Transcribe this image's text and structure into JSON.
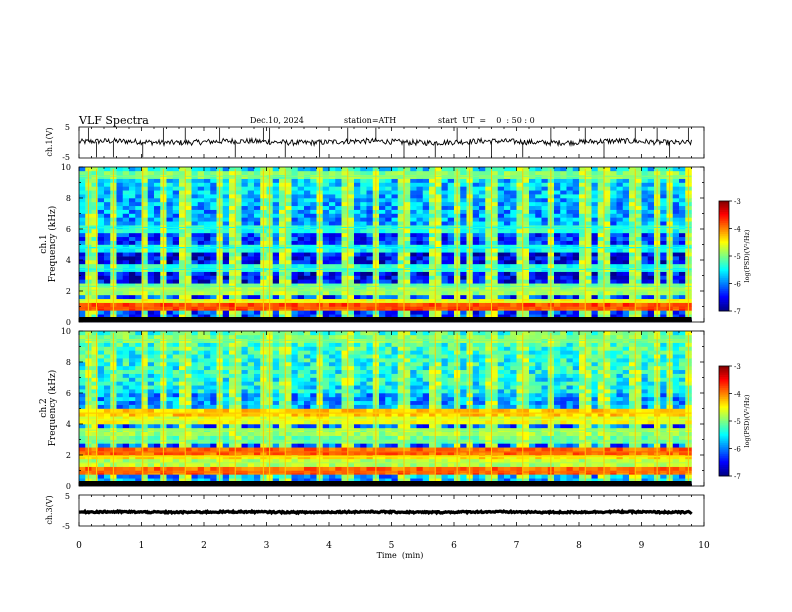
{
  "header": {
    "title": "VLF  Spectra",
    "date": "Dec.10, 2024",
    "station": "station=ATH",
    "start_ut": "start  UT  =    0  : 50 : 0"
  },
  "chart_data": [
    {
      "type": "line",
      "name": "ch1-waveform",
      "ylabel": "ch.1(V)",
      "xlim": [
        0,
        10
      ],
      "ylim": [
        -5,
        5
      ],
      "yticks": [
        "5",
        "-5"
      ],
      "data_extent_min": [
        0,
        9.8
      ],
      "baseline_v": 0.2,
      "noise_amplitude_v": 0.9,
      "spike_times_min": [
        0.15,
        0.28,
        0.55,
        1.02,
        1.35,
        1.7,
        2.25,
        2.5,
        2.95,
        3.05,
        3.3,
        3.85,
        4.3,
        4.75,
        5.2,
        5.7,
        6.05,
        6.25,
        6.6,
        7.1,
        7.55,
        8.1,
        8.4,
        8.9,
        9.25,
        9.45,
        9.75
      ]
    },
    {
      "type": "heatmap",
      "name": "ch1-spectrogram",
      "ylabel_top": "ch.1",
      "ylabel": "Frequency (kHz)",
      "xlim": [
        0,
        10
      ],
      "ylim": [
        0,
        10
      ],
      "yticks": [
        "0",
        "2",
        "4",
        "6",
        "8",
        "10"
      ],
      "data_extent_min": [
        0,
        9.8
      ],
      "colorbar": {
        "label": "log(PSD)(V²/Hz)",
        "range": [
          -7,
          -3
        ],
        "ticks": [
          "-3",
          "-4",
          "-5",
          "-6",
          "-7"
        ]
      },
      "bands_khz": [
        {
          "freq": 0.9,
          "level": -3.8
        },
        {
          "freq": 1.3,
          "level": -4.6
        },
        {
          "freq": 2.05,
          "level": -4.9
        },
        {
          "freq": 2.3,
          "level": -5.1
        },
        {
          "freq": 3.4,
          "level": -5.4
        },
        {
          "freq": 4.8,
          "level": -5.5
        },
        {
          "freq": 6.1,
          "level": -5.4
        },
        {
          "freq": 9.4,
          "level": -5.0
        }
      ],
      "background_level": -6.3,
      "spike_times_min": [
        0.15,
        0.28,
        0.55,
        1.02,
        1.35,
        1.7,
        2.25,
        2.5,
        2.95,
        3.05,
        3.3,
        3.85,
        4.3,
        4.75,
        5.2,
        5.7,
        6.05,
        6.25,
        6.6,
        7.1,
        7.55,
        8.1,
        8.4,
        8.9,
        9.25,
        9.45,
        9.75
      ]
    },
    {
      "type": "heatmap",
      "name": "ch2-spectrogram",
      "ylabel_top": "ch.2",
      "ylabel": "Frequency (kHz)",
      "xlim": [
        0,
        10
      ],
      "ylim": [
        0,
        10
      ],
      "yticks": [
        "0",
        "2",
        "4",
        "6",
        "8",
        "10"
      ],
      "data_extent_min": [
        0,
        9.8
      ],
      "colorbar": {
        "label": "log(PSD)(V²/Hz)",
        "range": [
          -7,
          -3
        ],
        "ticks": [
          "-3",
          "-4",
          "-5",
          "-6",
          "-7"
        ]
      },
      "bands_khz": [
        {
          "freq": 0.9,
          "level": -3.9
        },
        {
          "freq": 1.5,
          "level": -4.8
        },
        {
          "freq": 1.9,
          "level": -4.4
        },
        {
          "freq": 2.2,
          "level": -3.9
        },
        {
          "freq": 2.9,
          "level": -5.1
        },
        {
          "freq": 3.6,
          "level": -4.9
        },
        {
          "freq": 4.3,
          "level": -4.6
        },
        {
          "freq": 4.7,
          "level": -4.3
        },
        {
          "freq": 9.4,
          "level": -5.0
        }
      ],
      "background_level": -5.9,
      "spike_times_min": [
        0.15,
        0.28,
        0.55,
        1.02,
        1.35,
        1.7,
        2.25,
        2.5,
        2.95,
        3.05,
        3.3,
        3.85,
        4.3,
        4.75,
        5.2,
        5.7,
        6.05,
        6.25,
        6.6,
        7.1,
        7.55,
        8.1,
        8.4,
        8.9,
        9.25,
        9.45,
        9.75
      ]
    },
    {
      "type": "line",
      "name": "ch3-waveform",
      "ylabel": "ch.3(V)",
      "xlim": [
        0,
        10
      ],
      "ylim": [
        -5,
        5
      ],
      "yticks": [
        "5",
        "-5"
      ],
      "data_extent_min": [
        0,
        9.8
      ],
      "baseline_v": -0.5,
      "noise_amplitude_v": 0.25
    }
  ],
  "xaxis": {
    "label": "Time  (min)",
    "ticks": [
      "0",
      "1",
      "2",
      "3",
      "4",
      "5",
      "6",
      "7",
      "8",
      "9",
      "10"
    ]
  }
}
